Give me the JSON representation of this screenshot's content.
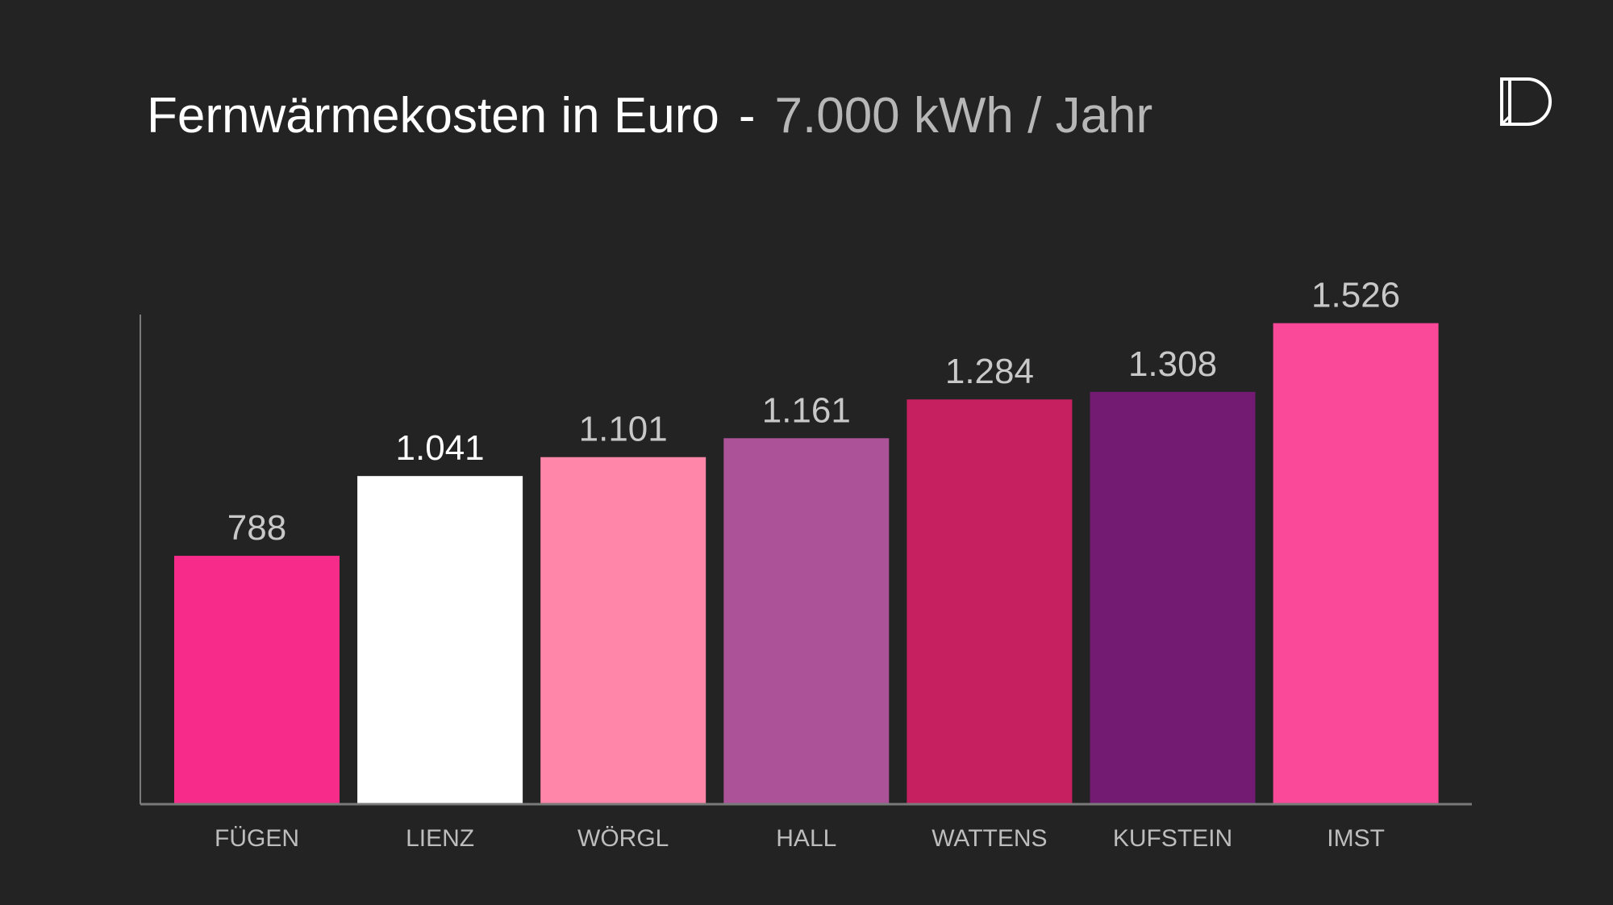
{
  "title": {
    "main": "Fernwärmekosten in Euro",
    "separator": "-",
    "sub": "7.000 kWh / Jahr"
  },
  "logo": {
    "icon": "d-logo-icon",
    "color": "#ffffff"
  },
  "chart_data": {
    "type": "bar",
    "categories": [
      "FÜGEN",
      "LIENZ",
      "WÖRGL",
      "HALL",
      "WATTENS",
      "KUFSTEIN",
      "IMST"
    ],
    "values": [
      788,
      1041,
      1101,
      1161,
      1284,
      1308,
      1526
    ],
    "value_labels": [
      "788",
      "1.041",
      "1.101",
      "1.161",
      "1.284",
      "1.308",
      "1.526"
    ],
    "colors": [
      "#f72b8a",
      "#ffffff",
      "#ff86a8",
      "#ab5299",
      "#c62061",
      "#731b73",
      "#f94998"
    ],
    "value_label_colors": [
      "#c8c8c8",
      "#ffffff",
      "#c8c8c8",
      "#c8c8c8",
      "#c8c8c8",
      "#c8c8c8",
      "#c8c8c8"
    ],
    "ylim": [
      0,
      1600
    ],
    "grid": false,
    "legend": "none",
    "xlabel": "",
    "ylabel": ""
  }
}
